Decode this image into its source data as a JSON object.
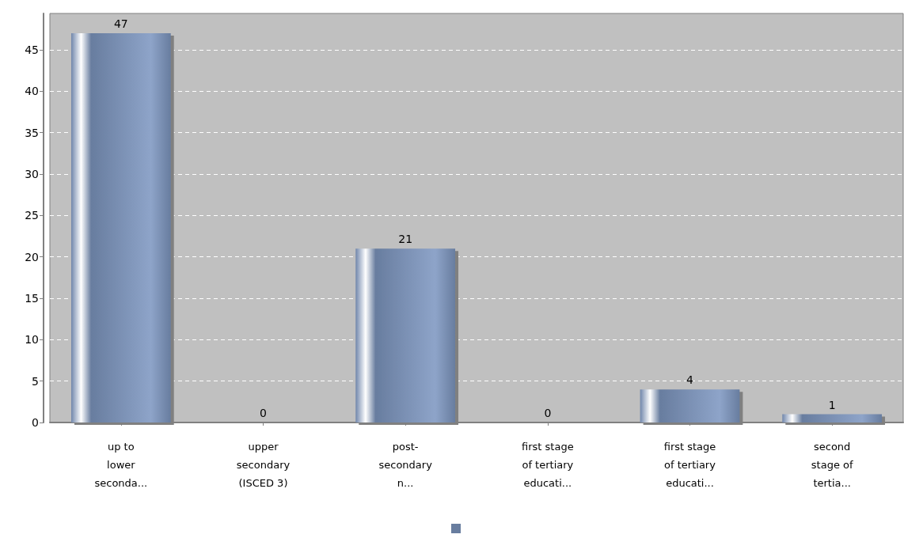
{
  "chart_data": {
    "type": "bar",
    "categories": [
      "up to lower seconda...",
      "upper secondary (ISCED 3)",
      "post-secondary n...",
      "first stage of tertiary educati...",
      "first stage of tertiary educati...",
      "second stage of tertia..."
    ],
    "values": [
      47,
      0,
      21,
      0,
      4,
      1
    ],
    "color": "#7f98c2",
    "ylim": [
      0,
      49.4
    ],
    "yticks": [
      0,
      5,
      10,
      15,
      20,
      25,
      30,
      35,
      40,
      45
    ],
    "grid": "y",
    "data_labels": true
  }
}
